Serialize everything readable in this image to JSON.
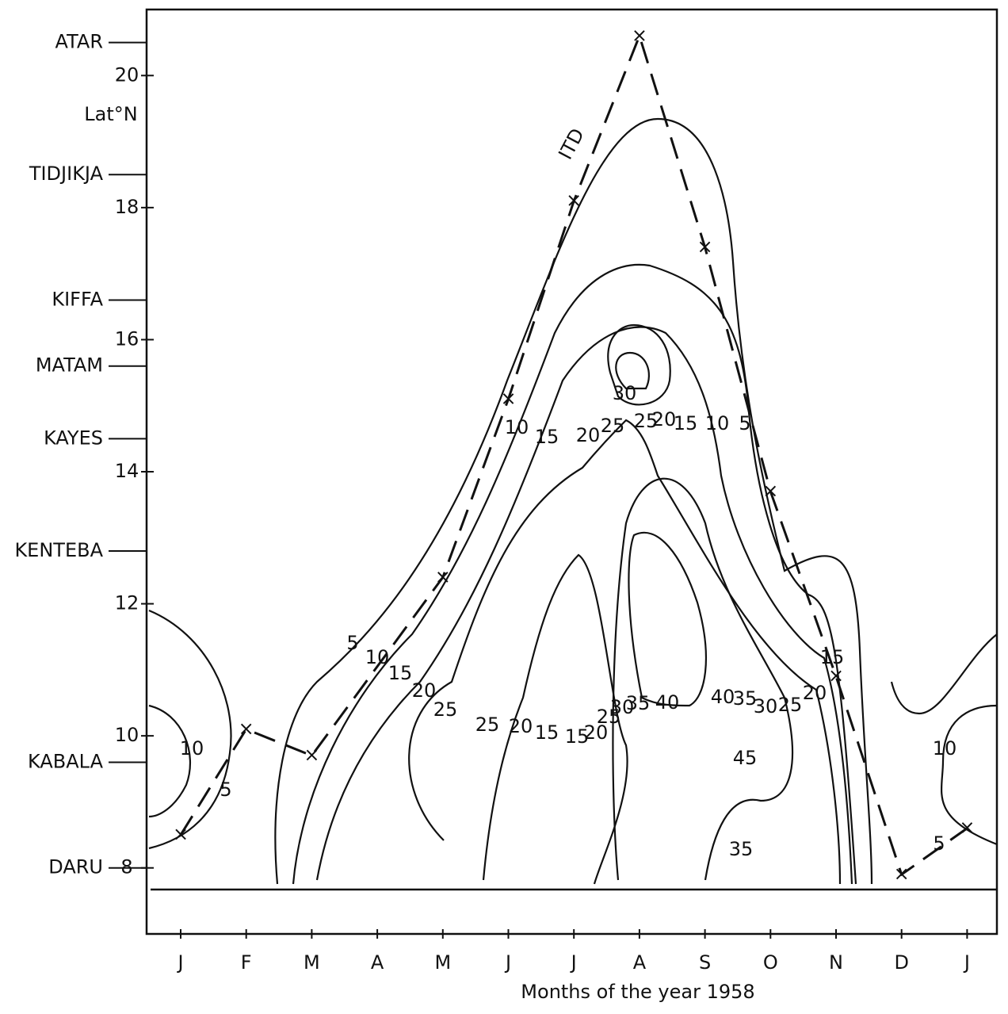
{
  "chart_data": {
    "type": "contour",
    "x_label": "Months of the year 1958",
    "y_label": "Lat°N",
    "categories": [
      "J",
      "F",
      "M",
      "A",
      "M",
      "J",
      "J",
      "A",
      "S",
      "O",
      "N",
      "D",
      "J"
    ],
    "ylim": [
      7,
      21
    ],
    "yticks": [
      8,
      10,
      12,
      14,
      16,
      18,
      20
    ],
    "stations": [
      {
        "name": "ATAR",
        "lat": 20.5
      },
      {
        "name": "TIDJIKJA",
        "lat": 18.5
      },
      {
        "name": "KIFFA",
        "lat": 16.6
      },
      {
        "name": "MATAM",
        "lat": 15.6
      },
      {
        "name": "KAYES",
        "lat": 14.5
      },
      {
        "name": "KENTEBA",
        "lat": 12.8
      },
      {
        "name": "KABALA",
        "lat": 9.6
      },
      {
        "name": "DARU",
        "lat": 8
      }
    ],
    "series": [
      {
        "name": "ITD",
        "color": "#111111",
        "x": [
          0,
          1,
          2,
          4,
          5,
          6,
          7,
          8,
          9,
          10,
          11,
          12
        ],
        "values": [
          8.5,
          10.1,
          9.7,
          12.4,
          15.1,
          18.1,
          20.6,
          17.4,
          13.7,
          10.9,
          7.9,
          8.6
        ]
      }
    ],
    "contour_labels": [
      5,
      10,
      15,
      20,
      25,
      25,
      20,
      15,
      15,
      20,
      25,
      30,
      35,
      40,
      40,
      35,
      30,
      25,
      20,
      15,
      10,
      15,
      20,
      25,
      25,
      20,
      15,
      10,
      5,
      30,
      10,
      5,
      10,
      5,
      45,
      35
    ]
  }
}
